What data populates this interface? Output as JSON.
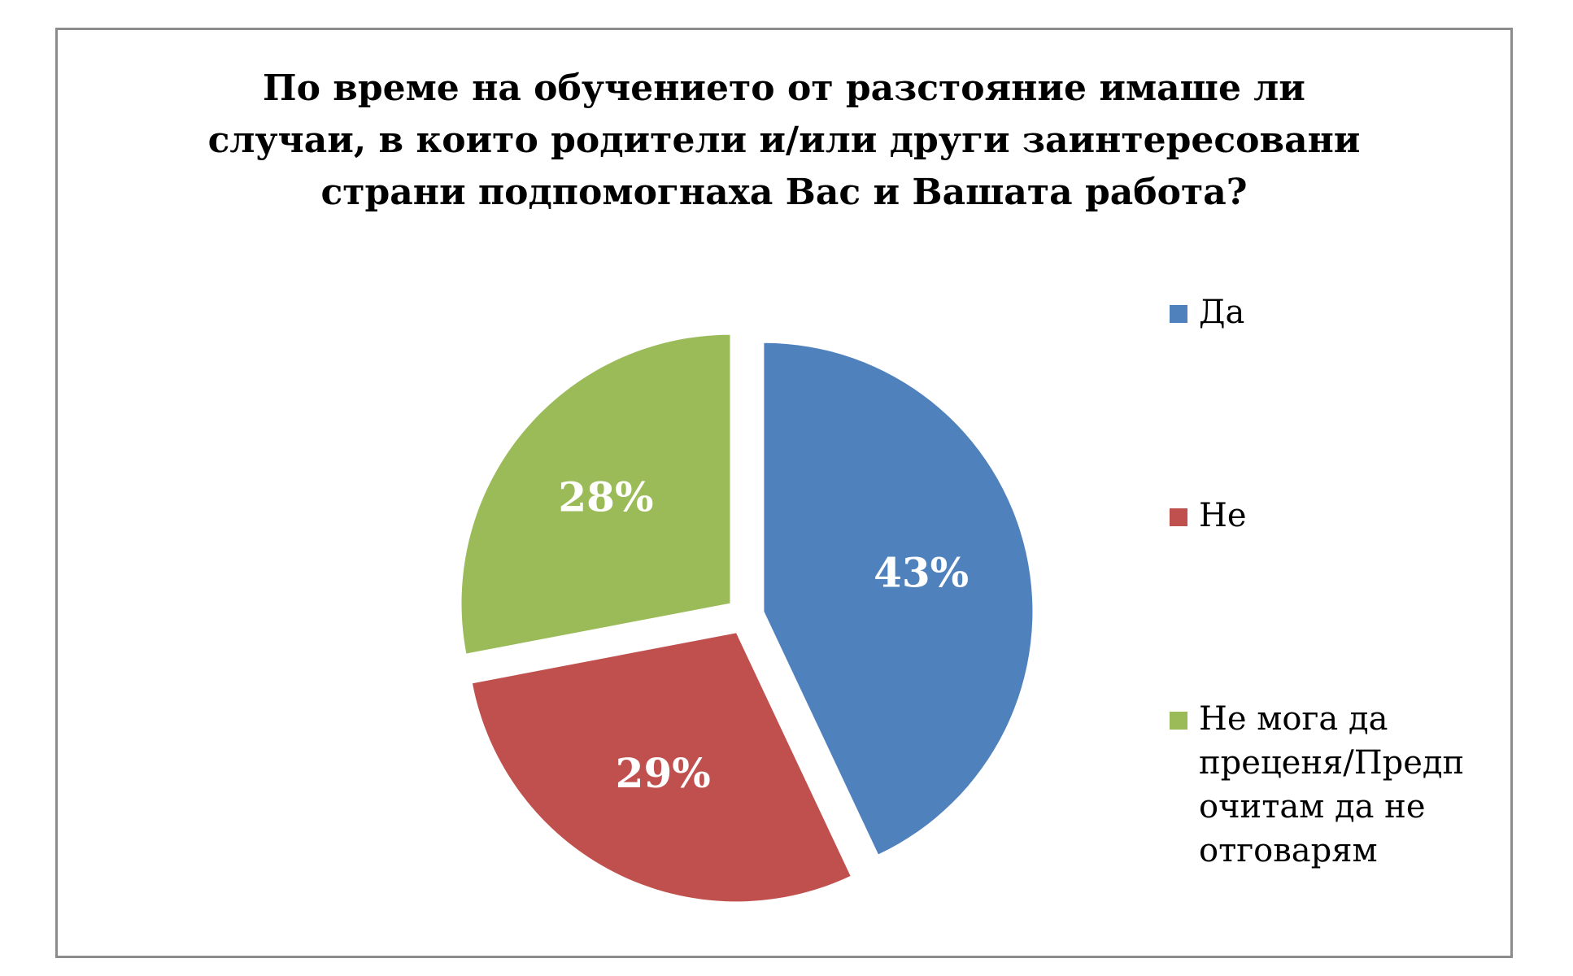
{
  "chart_data": {
    "type": "pie",
    "title_lines": [
      "По време на обучението от разстояние  имаше ли",
      "случаи, в които родители и/или други заинтересовани",
      "страни подпомогнаха Вас и Вашата работа?"
    ],
    "categories": [
      "Да",
      "Не",
      "Не мога да преценя/Предпочитам да не отговарям"
    ],
    "values": [
      43,
      29,
      28
    ],
    "value_labels": [
      "43%",
      "29%",
      "28%"
    ],
    "colors": [
      "#4f81bd",
      "#c0504d",
      "#9bbb59"
    ],
    "legend_placement": "right",
    "legend_lines": [
      [
        "Да"
      ],
      [
        "Не"
      ],
      [
        "Не мога да",
        "преценя/Предп",
        "очитам да не",
        "отговарям"
      ]
    ]
  }
}
